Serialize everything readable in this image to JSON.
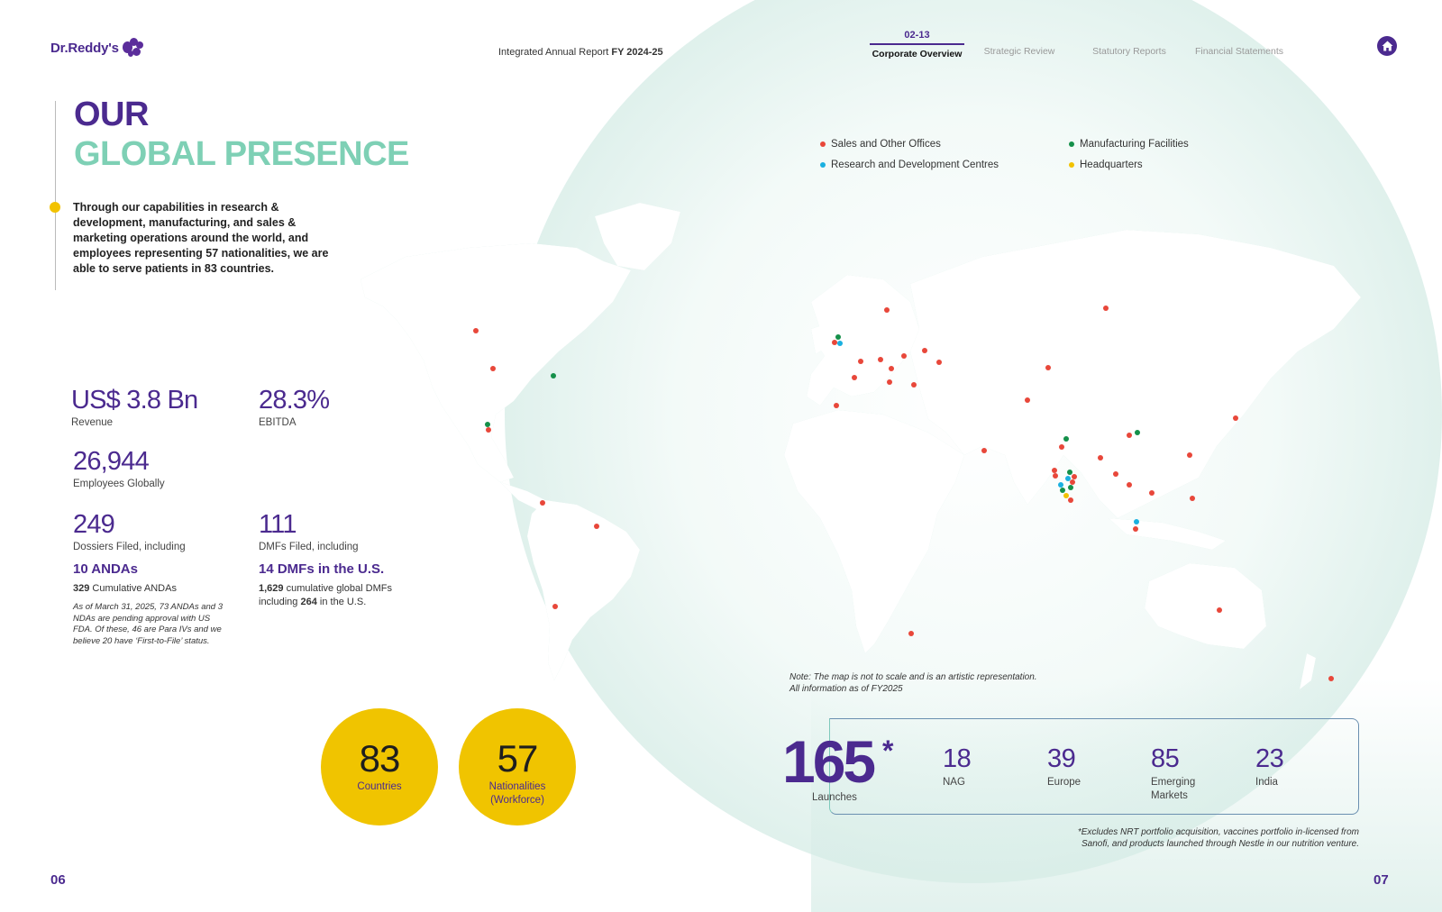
{
  "header": {
    "logo_text": "Dr.Reddy's",
    "report_title_prefix": "Integrated Annual Report ",
    "report_title_bold": "FY 2024-25",
    "nav": [
      {
        "num": "02-13",
        "label": "Corporate Overview",
        "active": true
      },
      {
        "label": "Strategic Review"
      },
      {
        "label": "Statutory Reports"
      },
      {
        "label": "Financial Statements"
      }
    ],
    "home_icon": "home-icon"
  },
  "title": {
    "line1": "OUR",
    "line2": "GLOBAL PRESENCE"
  },
  "intro": "Through our capabilities in research & development, manufacturing, and sales & marketing operations around the world, and employees representing 57 nationalities, we are able to serve patients in 83 countries.",
  "stats": {
    "revenue": {
      "value": "US$ 3.8 Bn",
      "label": "Revenue"
    },
    "ebitda": {
      "value": "28.3%",
      "label": "EBITDA"
    },
    "employees": {
      "value": "26,944",
      "label": "Employees Globally"
    },
    "dossiers": {
      "value": "249",
      "label": "Dossiers Filed, including",
      "sub": "10 ANDAs",
      "note_bold": "329",
      "note": " Cumulative ANDAs"
    },
    "dmfs": {
      "value": "111",
      "label": "DMFs Filed, including",
      "sub": "14 DMFs in the U.S.",
      "note_bold1": "1,629",
      "note1": " cumulative global DMFs",
      "note2": "including ",
      "note_bold2": "264",
      "note3": " in the U.S."
    },
    "footnote": "As of March 31, 2025, 73 ANDAs and 3 NDAs are pending approval with US FDA. Of these, 46 are Para IVs and we believe 20 have ‘First-to-File’ status."
  },
  "circles": [
    {
      "value": "83",
      "label": "Countries"
    },
    {
      "value": "57",
      "label": "Nationalities",
      "label2": "(Workforce)"
    }
  ],
  "legend": [
    {
      "label": "Sales and Other Offices",
      "color": "#e8473a"
    },
    {
      "label": "Manufacturing Facilities",
      "color": "#15904a"
    },
    {
      "label": "Research and Development Centres",
      "color": "#1ab0e0"
    },
    {
      "label": "Headquarters",
      "color": "#f2c200"
    }
  ],
  "map_note": {
    "line1": "Note: The map is not to scale and is an artistic representation.",
    "line2": "All information as of FY2025"
  },
  "launches": {
    "total": "165",
    "asterisk": "*",
    "label": "Launches",
    "regions": [
      {
        "value": "18",
        "label": "NAG"
      },
      {
        "value": "39",
        "label": "Europe"
      },
      {
        "value": "85",
        "label": "Emerging",
        "label2": "Markets"
      },
      {
        "value": "23",
        "label": "India"
      }
    ],
    "footnote1": "*Excludes NRT portfolio acquisition, vaccines portfolio in-licensed from",
    "footnote2": "Sanofi, and products launched through Nestle in our nutrition venture."
  },
  "pages": {
    "left": "06",
    "right": "07"
  }
}
